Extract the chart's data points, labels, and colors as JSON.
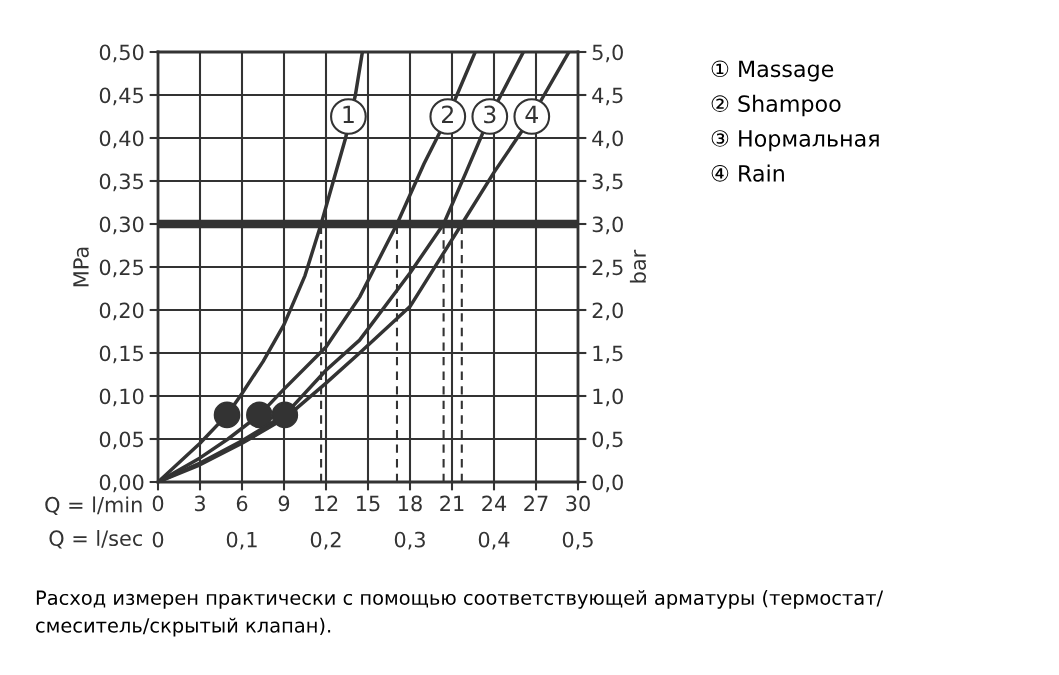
{
  "chart_data": {
    "type": "line",
    "xlabel": "Q = l/min",
    "ylabel": "MPa",
    "y2label": "bar",
    "x2label": "Q = l/sec",
    "xlim": [
      0,
      30
    ],
    "xticks": [
      0,
      3,
      6,
      9,
      12,
      15,
      18,
      21,
      24,
      27,
      30
    ],
    "ylim": [
      0,
      0.5
    ],
    "yticks": [
      {
        "value": 0,
        "label": "0,00"
      },
      {
        "value": 0.05,
        "label": "0,05"
      },
      {
        "value": 0.1,
        "label": "0,10"
      },
      {
        "value": 0.15,
        "label": "0,15"
      },
      {
        "value": 0.2,
        "label": "0,20"
      },
      {
        "value": 0.25,
        "label": "0,25"
      },
      {
        "value": 0.3,
        "label": "0,30"
      },
      {
        "value": 0.35,
        "label": "0,35"
      },
      {
        "value": 0.4,
        "label": "0,40"
      },
      {
        "value": 0.45,
        "label": "0,45"
      },
      {
        "value": 0.5,
        "label": "0,50"
      }
    ],
    "y2lim": [
      0,
      5
    ],
    "y2ticks": [
      {
        "value": 0,
        "label": "0,0"
      },
      {
        "value": 0.5,
        "label": "0,5"
      },
      {
        "value": 1,
        "label": "1,0"
      },
      {
        "value": 1.5,
        "label": "1,5"
      },
      {
        "value": 2,
        "label": "2,0"
      },
      {
        "value": 2.5,
        "label": "2,5"
      },
      {
        "value": 3,
        "label": "3,0"
      },
      {
        "value": 3.5,
        "label": "3,5"
      },
      {
        "value": 4,
        "label": "4,0"
      },
      {
        "value": 4.5,
        "label": "4,5"
      },
      {
        "value": 5,
        "label": "5,0"
      }
    ],
    "x2lim": [
      0,
      0.5
    ],
    "x2ticks": [
      0,
      {
        "value": 0.1,
        "label": "0,1"
      },
      {
        "value": 0.2,
        "label": "0,2"
      },
      {
        "value": 0.3,
        "label": "0,3"
      },
      {
        "value": 0.4,
        "label": "0,4"
      },
      {
        "value": 0.5,
        "label": "0,5"
      }
    ],
    "grid": true,
    "legend": "right",
    "marker": "none",
    "line_style": "solid",
    "series": [
      {
        "name": "① Massage",
        "color": "#333333",
        "x": [
          0,
          3,
          4.93,
          6,
          7.5,
          9,
          10.5,
          11.65,
          13.4,
          14.1,
          14.6
        ],
        "values": [
          0,
          0.045,
          0.078,
          0.103,
          0.14,
          0.183,
          0.24,
          0.3,
          0.4,
          0.45,
          0.5
        ]
      },
      {
        "name": "② Shampoo",
        "color": "#333333",
        "x": [
          0,
          3,
          5,
          7.24,
          9,
          12,
          14.4,
          17.07,
          19,
          20.7,
          22.66
        ],
        "values": [
          0,
          0.028,
          0.05,
          0.078,
          0.108,
          0.157,
          0.215,
          0.3,
          0.37,
          0.425,
          0.5
        ]
      },
      {
        "name": "③ Нормальная",
        "color": "#333333",
        "x": [
          0,
          3,
          6,
          9.06,
          12,
          14.4,
          18,
          20.4,
          22,
          23.7,
          26.1
        ],
        "values": [
          0,
          0.022,
          0.048,
          0.078,
          0.13,
          0.165,
          0.243,
          0.3,
          0.36,
          0.425,
          0.5
        ]
      },
      {
        "name": "④ Rain",
        "color": "#333333",
        "x": [
          0,
          3,
          6,
          9.06,
          12,
          14.4,
          18,
          21.7,
          24,
          26.7,
          29.35
        ],
        "values": [
          0,
          0.02,
          0.045,
          0.074,
          0.115,
          0.15,
          0.204,
          0.3,
          0.36,
          0.425,
          0.5
        ]
      },
      {
        "type": "scatter",
        "color": "#333333",
        "marker": "circle",
        "x": [
          4.93,
          7.24,
          9.06
        ],
        "values": [
          0.078,
          0.078,
          0.078
        ]
      }
    ],
    "ref_lines": [
      {
        "axis": "y",
        "value": 0.3,
        "color": "#333333",
        "line_style": "solid"
      },
      {
        "axis": "x",
        "value": 11.65,
        "color": "#333333",
        "line_style": "dashed"
      },
      {
        "axis": "x",
        "value": 17.07,
        "color": "#333333",
        "line_style": "dashed"
      },
      {
        "axis": "x",
        "value": 20.4,
        "color": "#333333",
        "line_style": "dashed"
      },
      {
        "axis": "x",
        "value": 21.7,
        "color": "#333333",
        "line_style": "dashed"
      }
    ],
    "annotations": [
      {
        "text": "1",
        "x": 13.6,
        "y": 0.425
      },
      {
        "text": "2",
        "x": 20.7,
        "y": 0.425
      },
      {
        "text": "3",
        "x": 23.7,
        "y": 0.425
      },
      {
        "text": "4",
        "x": 26.7,
        "y": 0.425
      },
      "Расход измерен практически с помощью соответствующей арматуры (термостат/\nсмеситель/скрытый клапан)."
    ]
  }
}
